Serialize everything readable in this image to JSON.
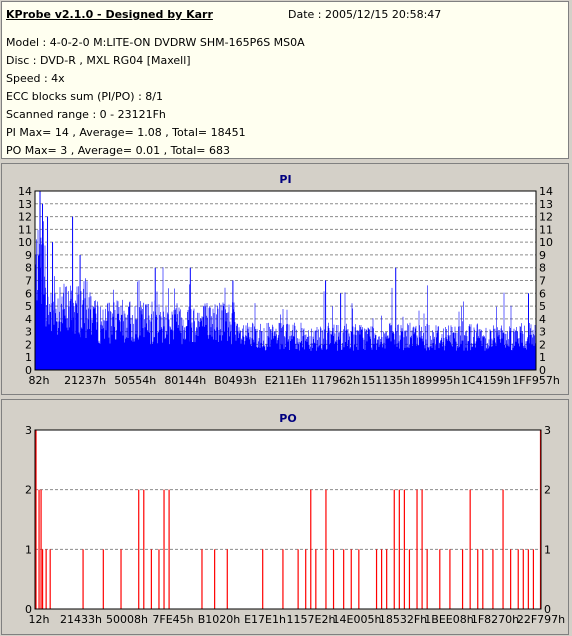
{
  "header": {
    "title": "KProbe v2.1.0 - Designed by Karr",
    "date": "Date : 2005/12/15 20:58:47",
    "lines": [
      "Model : 4-0-2-0 M:LITE-ON DVDRW SHM-165P6S MS0A",
      "Disc : DVD-R , MXL RG04 [Maxell]",
      "Speed : 4x",
      "ECC blocks sum (PI/PO) : 8/1",
      "Scanned range : 0 - 23121Fh",
      "PI Max= 14 , Average= 1.08 , Total= 18451",
      "PO Max= 3 , Average= 0.01 , Total= 683"
    ]
  },
  "colors": {
    "pi_bar": "#0000ff",
    "po_bar": "#ff0000",
    "plot_bg": "#ffffff",
    "panel_bg": "#d4d0c8",
    "info_bg": "#fffff0",
    "title_color": "#000080"
  },
  "chart_data": [
    {
      "type": "bar",
      "title": "PI",
      "ylim": [
        0,
        14
      ],
      "yticks": [
        0,
        1,
        2,
        3,
        4,
        5,
        6,
        7,
        8,
        9,
        10,
        11,
        12,
        13,
        14
      ],
      "grid": true,
      "xlabels": [
        "82h",
        "21237h",
        "50554h",
        "80144h",
        "B0493h",
        "E211Eh",
        "117962h",
        "151135h",
        "189995h",
        "1C4159h",
        "1FF957h"
      ],
      "peaks": [
        {
          "x": 0.01,
          "y": 14
        },
        {
          "x": 0.015,
          "y": 13
        },
        {
          "x": 0.025,
          "y": 12
        },
        {
          "x": 0.035,
          "y": 10
        },
        {
          "x": 0.075,
          "y": 12
        },
        {
          "x": 0.09,
          "y": 9
        },
        {
          "x": 0.24,
          "y": 8
        },
        {
          "x": 0.31,
          "y": 8
        },
        {
          "x": 0.395,
          "y": 7
        },
        {
          "x": 0.58,
          "y": 7
        },
        {
          "x": 0.61,
          "y": 6
        },
        {
          "x": 0.72,
          "y": 8
        },
        {
          "x": 0.985,
          "y": 6
        }
      ]
    },
    {
      "type": "bar",
      "title": "PO",
      "ylim": [
        0,
        3
      ],
      "yticks": [
        0,
        1,
        2,
        3
      ],
      "grid": true,
      "xlabels": [
        "12h",
        "21433h",
        "50008h",
        "7FE45h",
        "B1020h",
        "E17E1h",
        "1157E2h",
        "14E005h",
        "18532Fh",
        "1BEE08h",
        "1F8270h",
        "22F797h"
      ],
      "bars": [
        {
          "x": 0.002,
          "y": 3
        },
        {
          "x": 0.008,
          "y": 2
        },
        {
          "x": 0.012,
          "y": 2
        },
        {
          "x": 0.015,
          "y": 1
        },
        {
          "x": 0.022,
          "y": 1
        },
        {
          "x": 0.03,
          "y": 1
        },
        {
          "x": 0.095,
          "y": 1
        },
        {
          "x": 0.135,
          "y": 1
        },
        {
          "x": 0.17,
          "y": 1
        },
        {
          "x": 0.205,
          "y": 2
        },
        {
          "x": 0.215,
          "y": 2
        },
        {
          "x": 0.23,
          "y": 1
        },
        {
          "x": 0.245,
          "y": 1
        },
        {
          "x": 0.255,
          "y": 2
        },
        {
          "x": 0.265,
          "y": 2
        },
        {
          "x": 0.33,
          "y": 1
        },
        {
          "x": 0.355,
          "y": 1
        },
        {
          "x": 0.38,
          "y": 1
        },
        {
          "x": 0.45,
          "y": 1
        },
        {
          "x": 0.49,
          "y": 1
        },
        {
          "x": 0.52,
          "y": 1
        },
        {
          "x": 0.535,
          "y": 1
        },
        {
          "x": 0.545,
          "y": 2
        },
        {
          "x": 0.555,
          "y": 1
        },
        {
          "x": 0.575,
          "y": 2
        },
        {
          "x": 0.59,
          "y": 1
        },
        {
          "x": 0.61,
          "y": 1
        },
        {
          "x": 0.625,
          "y": 1
        },
        {
          "x": 0.64,
          "y": 1
        },
        {
          "x": 0.675,
          "y": 1
        },
        {
          "x": 0.685,
          "y": 1
        },
        {
          "x": 0.695,
          "y": 1
        },
        {
          "x": 0.71,
          "y": 2
        },
        {
          "x": 0.72,
          "y": 2
        },
        {
          "x": 0.73,
          "y": 2
        },
        {
          "x": 0.74,
          "y": 1
        },
        {
          "x": 0.755,
          "y": 2
        },
        {
          "x": 0.765,
          "y": 2
        },
        {
          "x": 0.775,
          "y": 1
        },
        {
          "x": 0.8,
          "y": 1
        },
        {
          "x": 0.82,
          "y": 1
        },
        {
          "x": 0.845,
          "y": 1
        },
        {
          "x": 0.86,
          "y": 2
        },
        {
          "x": 0.875,
          "y": 1
        },
        {
          "x": 0.885,
          "y": 1
        },
        {
          "x": 0.905,
          "y": 1
        },
        {
          "x": 0.925,
          "y": 2
        },
        {
          "x": 0.94,
          "y": 1
        },
        {
          "x": 0.955,
          "y": 1
        },
        {
          "x": 0.965,
          "y": 1
        },
        {
          "x": 0.975,
          "y": 1
        },
        {
          "x": 0.985,
          "y": 1
        },
        {
          "x": 0.999,
          "y": 3
        }
      ]
    }
  ]
}
